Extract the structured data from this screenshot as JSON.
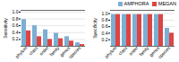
{
  "chart_data": [
    {
      "type": "bar",
      "categories": [
        "phylum",
        "class",
        "order",
        "family",
        "genus",
        "species"
      ],
      "series": [
        {
          "name": "AMPHORA",
          "color": "#7bafd4",
          "values": [
            0.78,
            0.6,
            0.48,
            0.38,
            0.28,
            0.1
          ]
        },
        {
          "name": "MEGAN",
          "color": "#d44",
          "values": [
            0.45,
            0.28,
            0.2,
            0.22,
            0.15,
            0.05
          ]
        }
      ],
      "ylabel": "Sensitivity",
      "ylim": [
        0,
        1.05
      ],
      "yticks": [
        0.2,
        0.4,
        0.6,
        0.8,
        {
          "value": 1.0,
          "label": "1.0"
        }
      ],
      "grid": true
    },
    {
      "type": "bar",
      "categories": [
        "phylum",
        "class",
        "order",
        "family",
        "genus",
        "species"
      ],
      "series": [
        {
          "name": "AMPHORA",
          "color": "#7bafd4",
          "values": [
            0.97,
            0.97,
            0.97,
            0.97,
            0.97,
            0.55
          ]
        },
        {
          "name": "MEGAN",
          "color": "#d44",
          "values": [
            0.97,
            0.97,
            0.97,
            0.97,
            0.97,
            0.4
          ]
        }
      ],
      "ylabel": "Specificity",
      "ylim": [
        0,
        1.1
      ],
      "yticks": [
        0.2,
        0.4,
        0.6,
        0.8,
        {
          "value": 1.0,
          "label": "1.0"
        }
      ],
      "grid": true,
      "legend": "upper right"
    }
  ]
}
